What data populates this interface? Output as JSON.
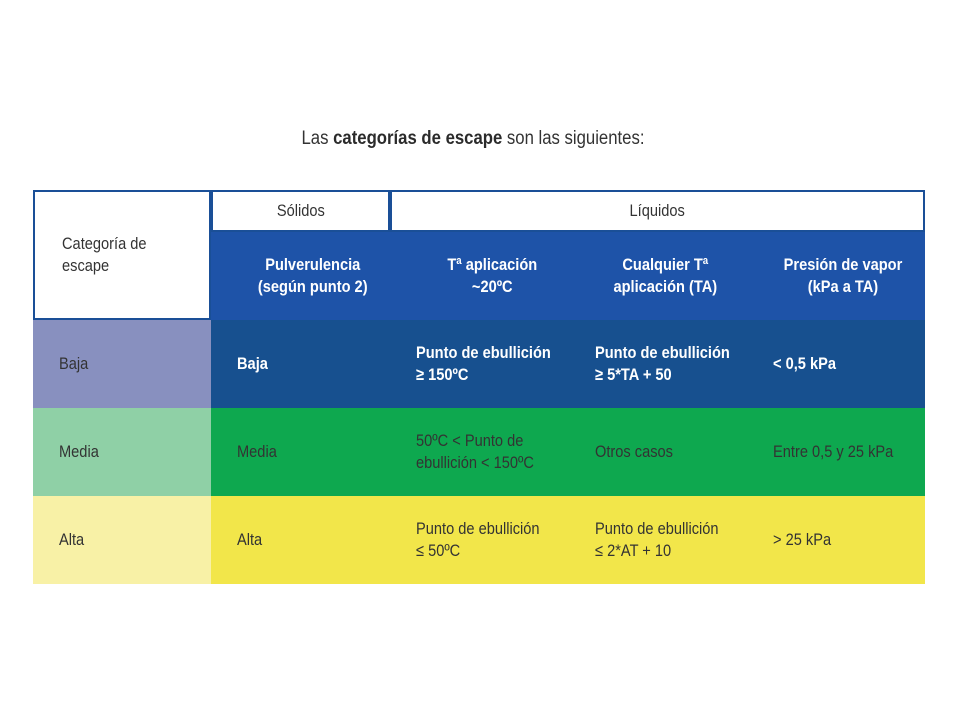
{
  "title": {
    "prefix": "Las ",
    "bold": "categorías de escape",
    "suffix": " son las siguientes:"
  },
  "colors": {
    "header_blue": "#1e53a8",
    "baja_label": "#8890bf",
    "baja_row": "#17508f",
    "media_label": "#8fd0a6",
    "media_row": "#0ea84f",
    "alta_label": "#f8f1a6",
    "alta_row": "#f2e64a"
  },
  "table": {
    "category_header": "Categoría de escape",
    "group_solidos": "Sólidos",
    "group_liquidos": "Líquidos",
    "columns": [
      "Pulverulencia\n(según punto 2)",
      "Tª aplicación\n~20ºC",
      "Cualquier Tª\naplicación (TA)",
      "Presión de vapor\n(kPa a TA)"
    ],
    "rows": [
      {
        "label": "Baja",
        "cells": [
          "Baja",
          "Punto de ebullición\n≥ 150ºC",
          "Punto de ebullición\n≥ 5*TA + 50",
          "< 0,5 kPa"
        ]
      },
      {
        "label": "Media",
        "cells": [
          "Media",
          "50ºC < Punto de\nebullición < 150ºC",
          "Otros casos",
          "Entre 0,5 y 25 kPa"
        ]
      },
      {
        "label": "Alta",
        "cells": [
          "Alta",
          "Punto de ebullición\n≤ 50ºC",
          "Punto de ebullición\n≤ 2*AT + 10",
          "> 25 kPa"
        ]
      }
    ]
  }
}
